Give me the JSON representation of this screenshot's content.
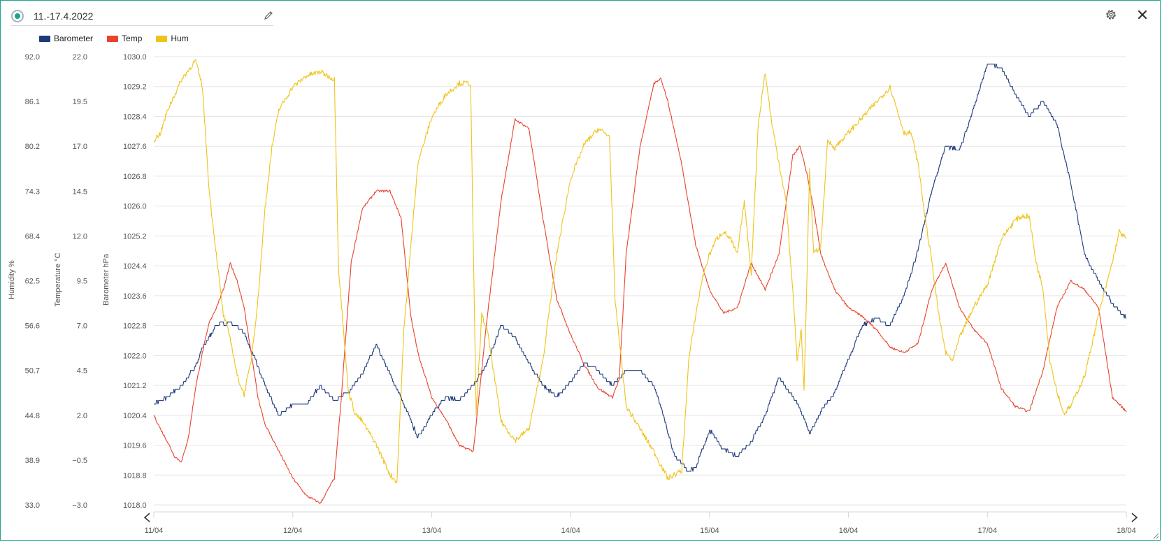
{
  "header": {
    "title": "11.-17.4.2022"
  },
  "icons": {
    "edit": "pencil-icon",
    "settings": "gear-icon",
    "close": "close-icon"
  },
  "legend": [
    {
      "label": "Barometer",
      "color": "#1f3a7a"
    },
    {
      "label": "Temp",
      "color": "#e8432d"
    },
    {
      "label": "Hum",
      "color": "#eec41a"
    }
  ],
  "chart_data": {
    "type": "line",
    "x_ticks": [
      "11/04",
      "12/04",
      "13/04",
      "14/04",
      "15/04",
      "16/04",
      "17/04",
      "18/04"
    ],
    "axes": [
      {
        "id": "humidity",
        "title": "Humidity %",
        "range": [
          33.0,
          92.0
        ],
        "ticks": [
          "92.0",
          "86.1",
          "80.2",
          "74.3",
          "68.4",
          "62.5",
          "56.6",
          "50.7",
          "44.8",
          "38.9",
          "33.0"
        ]
      },
      {
        "id": "temperature",
        "title": "Temperature °C",
        "range": [
          -3.0,
          22.0
        ],
        "ticks": [
          "22.0",
          "19.5",
          "17.0",
          "14.5",
          "12.0",
          "9.5",
          "7.0",
          "4.5",
          "2.0",
          "−0.5",
          "−3.0"
        ]
      },
      {
        "id": "barometer",
        "title": "Barometer hPa",
        "range": [
          1018.0,
          1030.0
        ],
        "ticks": [
          "1030.0",
          "1029.2",
          "1028.4",
          "1027.6",
          "1026.8",
          "1026.0",
          "1025.2",
          "1024.4",
          "1023.6",
          "1022.8",
          "1022.0",
          "1021.2",
          "1020.4",
          "1019.6",
          "1018.8",
          "1018.0"
        ]
      }
    ],
    "x_range_days": [
      11,
      18
    ],
    "grid": true,
    "legend_position": "top-left",
    "series": [
      {
        "name": "Barometer",
        "axis": "barometer",
        "color": "#1f3a7a",
        "x": [
          11.0,
          11.1,
          11.2,
          11.3,
          11.35,
          11.45,
          11.55,
          11.65,
          11.72,
          11.8,
          11.9,
          12.0,
          12.1,
          12.2,
          12.3,
          12.4,
          12.5,
          12.6,
          12.7,
          12.8,
          12.9,
          13.0,
          13.1,
          13.2,
          13.3,
          13.4,
          13.5,
          13.6,
          13.7,
          13.8,
          13.9,
          14.0,
          14.1,
          14.2,
          14.25,
          14.3,
          14.4,
          14.5,
          14.6,
          14.65,
          14.75,
          14.85,
          14.9,
          15.0,
          15.1,
          15.2,
          15.3,
          15.4,
          15.5,
          15.6,
          15.65,
          15.72,
          15.8,
          15.9,
          16.0,
          16.1,
          16.2,
          16.3,
          16.4,
          16.5,
          16.6,
          16.7,
          16.8,
          16.9,
          17.0,
          17.1,
          17.2,
          17.3,
          17.4,
          17.5,
          17.6,
          17.7,
          17.8,
          17.9,
          18.0
        ],
        "y": [
          1020.7,
          1020.9,
          1021.2,
          1021.7,
          1022.2,
          1022.8,
          1022.9,
          1022.6,
          1022.0,
          1021.2,
          1020.4,
          1020.7,
          1020.7,
          1021.2,
          1020.8,
          1021.0,
          1021.5,
          1022.3,
          1021.5,
          1020.7,
          1019.8,
          1020.4,
          1020.9,
          1020.8,
          1021.2,
          1021.8,
          1022.8,
          1022.5,
          1021.8,
          1021.2,
          1020.9,
          1021.3,
          1021.8,
          1021.6,
          1021.4,
          1021.2,
          1021.6,
          1021.6,
          1021.2,
          1020.6,
          1019.3,
          1018.9,
          1019.0,
          1020.0,
          1019.5,
          1019.3,
          1019.7,
          1020.4,
          1021.4,
          1020.9,
          1020.6,
          1019.9,
          1020.5,
          1021.0,
          1021.9,
          1022.8,
          1023.0,
          1022.8,
          1023.6,
          1024.8,
          1026.4,
          1027.6,
          1027.5,
          1028.6,
          1029.8,
          1029.7,
          1029.0,
          1028.4,
          1028.8,
          1028.2,
          1026.6,
          1024.7,
          1024.0,
          1023.4,
          1023.0
        ]
      },
      {
        "name": "Temp",
        "axis": "temperature",
        "color": "#e8432d",
        "x": [
          11.0,
          11.05,
          11.1,
          11.15,
          11.2,
          11.25,
          11.3,
          11.35,
          11.4,
          11.45,
          11.5,
          11.55,
          11.6,
          11.65,
          11.7,
          11.75,
          11.8,
          11.9,
          12.0,
          12.1,
          12.2,
          12.3,
          12.35,
          12.42,
          12.5,
          12.6,
          12.7,
          12.78,
          12.85,
          12.9,
          13.0,
          13.1,
          13.2,
          13.3,
          13.4,
          13.5,
          13.6,
          13.7,
          13.8,
          13.9,
          14.0,
          14.1,
          14.2,
          14.3,
          14.35,
          14.4,
          14.5,
          14.6,
          14.65,
          14.7,
          14.8,
          14.9,
          15.0,
          15.1,
          15.2,
          15.3,
          15.4,
          15.5,
          15.6,
          15.65,
          15.7,
          15.75,
          15.8,
          15.9,
          16.0,
          16.1,
          16.2,
          16.3,
          16.4,
          16.5,
          16.6,
          16.7,
          16.8,
          16.9,
          17.0,
          17.1,
          17.2,
          17.3,
          17.4,
          17.5,
          17.6,
          17.7,
          17.8,
          17.9,
          18.0
        ],
        "y": [
          2.0,
          1.2,
          0.5,
          -0.3,
          -0.6,
          0.8,
          3.5,
          5.5,
          7.2,
          8.0,
          9.0,
          10.5,
          9.5,
          8.0,
          5.5,
          3.0,
          1.5,
          0.0,
          -1.5,
          -2.5,
          -2.9,
          -1.5,
          3.0,
          10.5,
          13.5,
          14.5,
          14.5,
          13.0,
          7.5,
          5.5,
          3.0,
          1.8,
          0.3,
          0.0,
          7.5,
          14.0,
          18.5,
          18.0,
          13.0,
          8.5,
          6.5,
          4.8,
          3.5,
          3.0,
          4.0,
          11.0,
          17.0,
          20.5,
          20.8,
          19.5,
          16.0,
          11.5,
          9.0,
          7.7,
          8.0,
          10.5,
          9.0,
          11.0,
          16.5,
          17.0,
          15.5,
          13.5,
          11.0,
          9.0,
          8.0,
          7.5,
          6.8,
          5.8,
          5.5,
          6.0,
          9.0,
          10.5,
          8.0,
          6.8,
          6.0,
          3.5,
          2.5,
          2.2,
          4.5,
          8.0,
          9.5,
          9.0,
          8.0,
          3.0,
          2.2
        ]
      },
      {
        "name": "Hum",
        "axis": "humidity",
        "color": "#eec41a",
        "x": [
          11.0,
          11.05,
          11.1,
          11.2,
          11.3,
          11.35,
          11.4,
          11.45,
          11.5,
          11.55,
          11.6,
          11.65,
          11.7,
          11.75,
          11.8,
          11.85,
          11.9,
          12.0,
          12.1,
          12.2,
          12.3,
          12.33,
          12.4,
          12.45,
          12.5,
          12.6,
          12.7,
          12.75,
          12.8,
          12.9,
          13.0,
          13.1,
          13.2,
          13.28,
          13.32,
          13.36,
          13.4,
          13.5,
          13.6,
          13.7,
          13.8,
          13.9,
          14.0,
          14.1,
          14.2,
          14.28,
          14.32,
          14.4,
          14.5,
          14.6,
          14.7,
          14.8,
          14.85,
          14.9,
          14.95,
          15.0,
          15.05,
          15.1,
          15.15,
          15.2,
          15.25,
          15.3,
          15.35,
          15.4,
          15.45,
          15.5,
          15.55,
          15.6,
          15.63,
          15.66,
          15.68,
          15.72,
          15.75,
          15.8,
          15.85,
          15.9,
          16.0,
          16.1,
          16.2,
          16.3,
          16.35,
          16.4,
          16.45,
          16.5,
          16.55,
          16.6,
          16.65,
          16.7,
          16.75,
          16.8,
          16.9,
          17.0,
          17.1,
          17.2,
          17.25,
          17.3,
          17.35,
          17.4,
          17.45,
          17.5,
          17.55,
          17.6,
          17.7,
          17.8,
          17.9,
          17.95,
          18.0
        ],
        "y": [
          81.0,
          82.0,
          85.0,
          89.0,
          91.5,
          88.0,
          74.0,
          66.0,
          58.0,
          55.0,
          50.0,
          47.5,
          52.0,
          60.0,
          72.0,
          80.0,
          85.0,
          88.0,
          89.5,
          90.0,
          89.0,
          64.0,
          48.0,
          45.0,
          44.0,
          41.0,
          37.0,
          36.0,
          56.0,
          78.0,
          84.0,
          87.0,
          88.5,
          88.5,
          45.0,
          58.0,
          56.0,
          44.0,
          41.5,
          43.0,
          52.0,
          66.0,
          76.0,
          80.5,
          82.5,
          81.5,
          60.0,
          46.0,
          43.0,
          40.0,
          36.5,
          37.5,
          52.0,
          58.0,
          63.0,
          66.0,
          68.0,
          69.0,
          68.0,
          66.0,
          73.0,
          63.5,
          83.0,
          90.0,
          83.0,
          78.0,
          73.0,
          61.0,
          52.0,
          56.0,
          48.0,
          77.0,
          66.0,
          67.0,
          81.0,
          80.0,
          82.0,
          84.0,
          86.0,
          88.0,
          85.0,
          82.0,
          82.0,
          78.0,
          71.0,
          65.0,
          58.0,
          53.0,
          52.0,
          55.0,
          59.0,
          62.0,
          68.0,
          70.5,
          71.0,
          71.0,
          65.0,
          61.5,
          52.0,
          48.0,
          45.0,
          46.0,
          50.0,
          58.0,
          65.0,
          69.0,
          68.0
        ]
      }
    ]
  }
}
